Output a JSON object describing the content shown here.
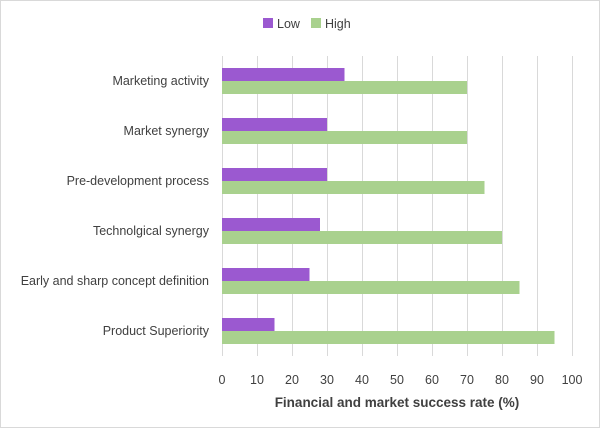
{
  "chart_data": {
    "type": "bar",
    "orientation": "horizontal",
    "categories": [
      "Marketing activity",
      "Market synergy",
      "Pre-development process",
      "Technolgical synergy",
      "Early and sharp concept definition",
      "Product Superiority"
    ],
    "series": [
      {
        "name": "Low",
        "color": "#9b59d0",
        "values": [
          35,
          30,
          30,
          28,
          25,
          15
        ]
      },
      {
        "name": "High",
        "color": "#a9d18e",
        "values": [
          70,
          70,
          75,
          80,
          85,
          95
        ]
      }
    ],
    "xlabel": "Financial and market success rate (%)",
    "ylabel": "",
    "xlim": [
      0,
      100
    ],
    "xticks": [
      "0",
      "10",
      "20",
      "30",
      "40",
      "50",
      "60",
      "70",
      "80",
      "90",
      "100"
    ],
    "grid": "vertical",
    "legend_position": "top"
  }
}
